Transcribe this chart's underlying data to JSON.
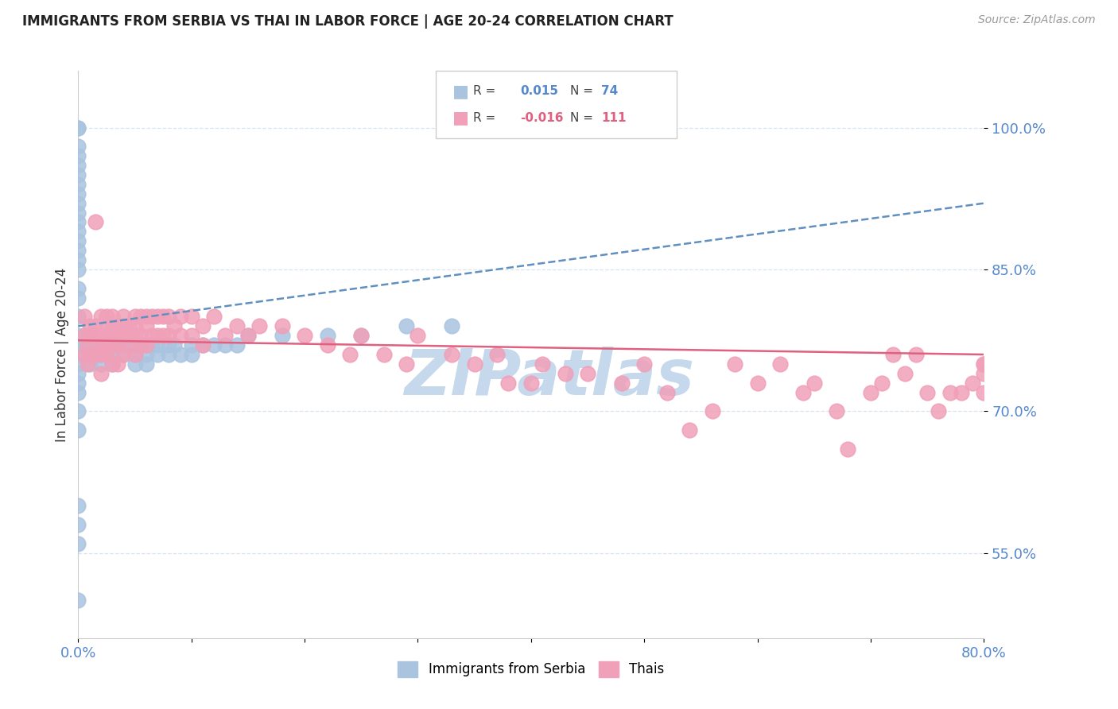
{
  "title": "IMMIGRANTS FROM SERBIA VS THAI IN LABOR FORCE | AGE 20-24 CORRELATION CHART",
  "source": "Source: ZipAtlas.com",
  "ylabel": "In Labor Force | Age 20-24",
  "xlim": [
    0.0,
    0.8
  ],
  "ylim": [
    0.46,
    1.06
  ],
  "yticks": [
    0.55,
    0.7,
    0.85,
    1.0
  ],
  "ytick_labels": [
    "55.0%",
    "70.0%",
    "85.0%",
    "100.0%"
  ],
  "serbia_R": 0.015,
  "serbia_N": 74,
  "thai_R": -0.016,
  "thai_N": 111,
  "serbia_color": "#aac4e0",
  "thai_color": "#f0a0b8",
  "serbia_line_color": "#6090c0",
  "thai_line_color": "#e06080",
  "background_color": "#ffffff",
  "grid_color": "#d8e4f0",
  "watermark_text": "ZIPatlas",
  "watermark_color": "#c5d8ec",
  "tick_color": "#5588cc",
  "serbia_x": [
    0.0,
    0.0,
    0.0,
    0.0,
    0.0,
    0.0,
    0.0,
    0.0,
    0.0,
    0.0,
    0.0,
    0.0,
    0.0,
    0.0,
    0.0,
    0.0,
    0.0,
    0.0,
    0.0,
    0.0,
    0.0,
    0.0,
    0.0,
    0.0,
    0.0,
    0.0,
    0.0,
    0.0,
    0.0,
    0.0,
    0.0,
    0.0,
    0.005,
    0.005,
    0.01,
    0.01,
    0.01,
    0.015,
    0.02,
    0.02,
    0.02,
    0.025,
    0.025,
    0.03,
    0.03,
    0.03,
    0.035,
    0.04,
    0.04,
    0.05,
    0.05,
    0.05,
    0.06,
    0.06,
    0.06,
    0.065,
    0.07,
    0.07,
    0.08,
    0.08,
    0.085,
    0.09,
    0.1,
    0.1,
    0.11,
    0.12,
    0.13,
    0.14,
    0.15,
    0.18,
    0.22,
    0.25,
    0.29,
    0.33
  ],
  "serbia_y": [
    1.0,
    1.0,
    0.98,
    0.97,
    0.96,
    0.95,
    0.94,
    0.93,
    0.92,
    0.91,
    0.9,
    0.89,
    0.88,
    0.87,
    0.86,
    0.85,
    0.83,
    0.82,
    0.8,
    0.78,
    0.77,
    0.76,
    0.75,
    0.74,
    0.73,
    0.72,
    0.7,
    0.68,
    0.6,
    0.58,
    0.56,
    0.5,
    0.78,
    0.77,
    0.78,
    0.76,
    0.75,
    0.77,
    0.77,
    0.76,
    0.75,
    0.77,
    0.76,
    0.77,
    0.76,
    0.75,
    0.77,
    0.77,
    0.76,
    0.77,
    0.76,
    0.75,
    0.77,
    0.76,
    0.75,
    0.77,
    0.77,
    0.76,
    0.77,
    0.76,
    0.77,
    0.76,
    0.77,
    0.76,
    0.77,
    0.77,
    0.77,
    0.77,
    0.78,
    0.78,
    0.78,
    0.78,
    0.79,
    0.79
  ],
  "thai_x": [
    0.005,
    0.005,
    0.005,
    0.008,
    0.008,
    0.01,
    0.01,
    0.01,
    0.012,
    0.015,
    0.015,
    0.015,
    0.015,
    0.02,
    0.02,
    0.02,
    0.02,
    0.02,
    0.025,
    0.025,
    0.025,
    0.025,
    0.025,
    0.03,
    0.03,
    0.03,
    0.03,
    0.03,
    0.035,
    0.035,
    0.035,
    0.035,
    0.04,
    0.04,
    0.04,
    0.04,
    0.045,
    0.045,
    0.045,
    0.05,
    0.05,
    0.05,
    0.05,
    0.055,
    0.055,
    0.055,
    0.06,
    0.06,
    0.06,
    0.065,
    0.065,
    0.07,
    0.07,
    0.075,
    0.075,
    0.08,
    0.08,
    0.085,
    0.09,
    0.09,
    0.1,
    0.1,
    0.11,
    0.11,
    0.12,
    0.13,
    0.14,
    0.15,
    0.16,
    0.18,
    0.2,
    0.22,
    0.24,
    0.25,
    0.27,
    0.29,
    0.3,
    0.33,
    0.35,
    0.37,
    0.38,
    0.4,
    0.41,
    0.43,
    0.45,
    0.48,
    0.5,
    0.52,
    0.54,
    0.56,
    0.58,
    0.6,
    0.62,
    0.64,
    0.65,
    0.67,
    0.68,
    0.7,
    0.71,
    0.72,
    0.73,
    0.74,
    0.75,
    0.76,
    0.77,
    0.78,
    0.79,
    0.8,
    0.8,
    0.8,
    0.8
  ],
  "thai_y": [
    0.8,
    0.78,
    0.76,
    0.77,
    0.75,
    0.79,
    0.78,
    0.76,
    0.78,
    0.9,
    0.79,
    0.78,
    0.76,
    0.8,
    0.78,
    0.77,
    0.76,
    0.74,
    0.8,
    0.79,
    0.78,
    0.77,
    0.76,
    0.8,
    0.79,
    0.78,
    0.77,
    0.75,
    0.79,
    0.78,
    0.77,
    0.75,
    0.8,
    0.79,
    0.78,
    0.76,
    0.79,
    0.78,
    0.77,
    0.8,
    0.79,
    0.78,
    0.76,
    0.8,
    0.78,
    0.77,
    0.8,
    0.79,
    0.77,
    0.8,
    0.78,
    0.8,
    0.78,
    0.8,
    0.78,
    0.8,
    0.78,
    0.79,
    0.8,
    0.78,
    0.8,
    0.78,
    0.79,
    0.77,
    0.8,
    0.78,
    0.79,
    0.78,
    0.79,
    0.79,
    0.78,
    0.77,
    0.76,
    0.78,
    0.76,
    0.75,
    0.78,
    0.76,
    0.75,
    0.76,
    0.73,
    0.73,
    0.75,
    0.74,
    0.74,
    0.73,
    0.75,
    0.72,
    0.68,
    0.7,
    0.75,
    0.73,
    0.75,
    0.72,
    0.73,
    0.7,
    0.66,
    0.72,
    0.73,
    0.76,
    0.74,
    0.76,
    0.72,
    0.7,
    0.72,
    0.72,
    0.73,
    0.75,
    0.74,
    0.72,
    0.75
  ]
}
